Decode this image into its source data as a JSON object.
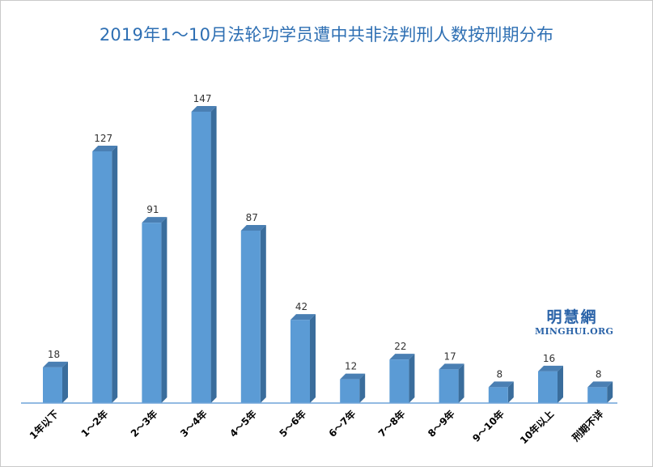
{
  "colors": {
    "bar_front": "#5b9bd5",
    "bar_side": "#3a6d9c",
    "bar_top": "#4a7fb3",
    "axis_line": "#6fa3d8",
    "title": "#2e6fb3",
    "watermark": "#2a63a8"
  },
  "watermark": {
    "chinese": "明慧網",
    "english": "MINGHUI.ORG"
  },
  "chart_data": {
    "type": "bar",
    "title": "2019年1～10月法轮功学员遭中共非法判刑人数按刑期分布",
    "xlabel": "",
    "ylabel": "",
    "categories": [
      "1年以下",
      "1～2年",
      "2～3年",
      "3～4年",
      "4～5年",
      "5～6年",
      "6～7年",
      "7～8年",
      "8～9年",
      "9～10年",
      "10年以上",
      "刑期不详"
    ],
    "values": [
      18,
      127,
      91,
      147,
      87,
      42,
      12,
      22,
      17,
      8,
      16,
      8
    ],
    "ylim": [
      0,
      150
    ],
    "grid": false,
    "legend": "none",
    "style": "3d-column"
  }
}
